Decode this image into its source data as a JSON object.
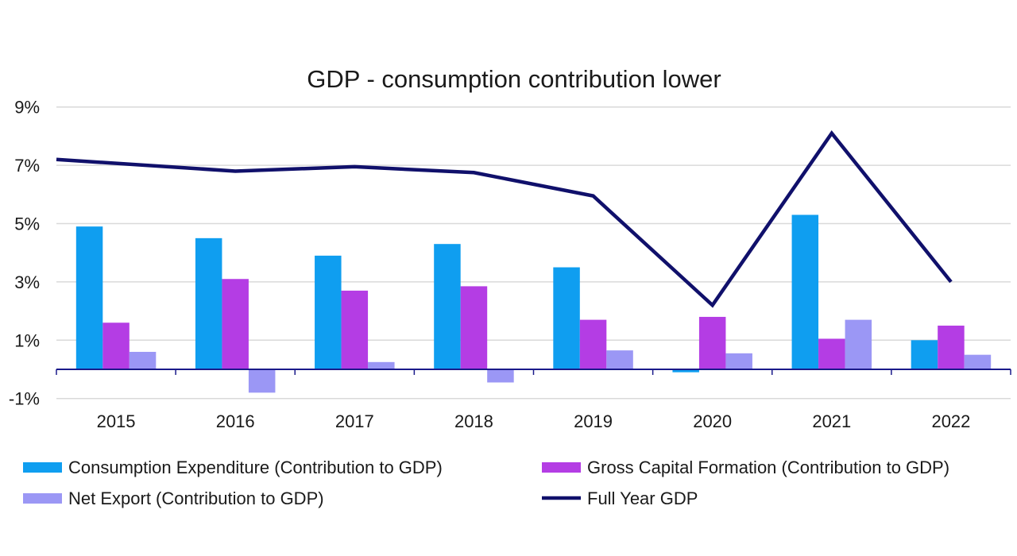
{
  "chart_data": {
    "type": "bar",
    "title": "GDP - consumption contribution lower",
    "categories": [
      "2015",
      "2016",
      "2017",
      "2018",
      "2019",
      "2020",
      "2021",
      "2022"
    ],
    "y_ticks": [
      "9%",
      "7%",
      "5%",
      "3%",
      "1%",
      "-1%"
    ],
    "ylim": [
      -1,
      9
    ],
    "grid": true,
    "legend_position": "bottom",
    "series": [
      {
        "name": "Consumption Expenditure (Contribution to GDP)",
        "type": "bar",
        "color": "#0f9ef0",
        "values": [
          4.9,
          4.5,
          3.9,
          4.3,
          3.5,
          -0.1,
          5.3,
          1.0
        ]
      },
      {
        "name": "Gross Capital Formation (Contribution to GDP)",
        "type": "bar",
        "color": "#b43de4",
        "values": [
          1.6,
          3.1,
          2.7,
          2.85,
          1.7,
          1.8,
          1.05,
          1.5
        ]
      },
      {
        "name": "Net Export (Contribution to GDP)",
        "type": "bar",
        "color": "#9b97f5",
        "values": [
          0.6,
          -0.8,
          0.25,
          -0.45,
          0.65,
          0.55,
          1.7,
          0.5
        ]
      },
      {
        "name": "Full Year GDP",
        "type": "line",
        "color": "#10106b",
        "values": [
          7.2,
          6.8,
          6.95,
          6.75,
          5.95,
          2.2,
          8.1,
          3.0
        ]
      }
    ]
  }
}
